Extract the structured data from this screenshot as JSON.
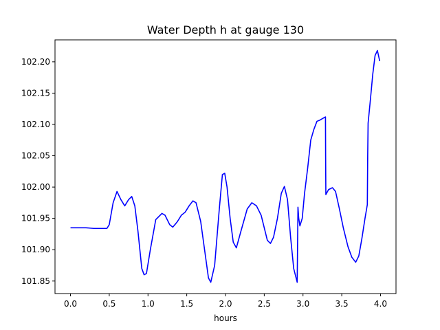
{
  "chart_data": {
    "type": "line",
    "title": "Water Depth h at gauge 130",
    "xlabel": "hours",
    "ylabel": "",
    "xlim": [
      -0.2,
      4.2
    ],
    "ylim": [
      101.83,
      102.235
    ],
    "x_ticks": [
      0.0,
      0.5,
      1.0,
      1.5,
      2.0,
      2.5,
      3.0,
      3.5,
      4.0
    ],
    "x_tick_labels": [
      "0.0",
      "0.5",
      "1.0",
      "1.5",
      "2.0",
      "2.5",
      "3.0",
      "3.5",
      "4.0"
    ],
    "y_ticks": [
      101.85,
      101.9,
      101.95,
      102.0,
      102.05,
      102.1,
      102.15,
      102.2
    ],
    "y_tick_labels": [
      "101.85",
      "101.90",
      "101.95",
      "102.00",
      "102.05",
      "102.10",
      "102.15",
      "102.20"
    ],
    "grid": false,
    "legend": "none",
    "series": [
      {
        "color": "#0000ff",
        "x": [
          0.0,
          0.1,
          0.2,
          0.3,
          0.4,
          0.47,
          0.5,
          0.55,
          0.6,
          0.65,
          0.7,
          0.75,
          0.79,
          0.83,
          0.87,
          0.92,
          0.95,
          0.98,
          1.03,
          1.1,
          1.18,
          1.22,
          1.28,
          1.32,
          1.38,
          1.43,
          1.48,
          1.53,
          1.58,
          1.62,
          1.68,
          1.73,
          1.78,
          1.81,
          1.86,
          1.92,
          1.96,
          1.99,
          2.02,
          2.06,
          2.1,
          2.14,
          2.2,
          2.28,
          2.34,
          2.4,
          2.46,
          2.5,
          2.54,
          2.58,
          2.62,
          2.67,
          2.72,
          2.76,
          2.8,
          2.84,
          2.88,
          2.925,
          2.935,
          2.945,
          2.96,
          2.99,
          3.02,
          3.06,
          3.1,
          3.14,
          3.18,
          3.22,
          3.26,
          3.29,
          3.292,
          3.295,
          3.33,
          3.38,
          3.42,
          3.47,
          3.52,
          3.58,
          3.63,
          3.68,
          3.72,
          3.76,
          3.8,
          3.83,
          3.835,
          3.84,
          3.87,
          3.9,
          3.93,
          3.96,
          3.99
        ],
        "values": [
          101.935,
          101.935,
          101.935,
          101.934,
          101.934,
          101.934,
          101.94,
          101.975,
          101.993,
          101.98,
          101.97,
          101.98,
          101.985,
          101.97,
          101.93,
          101.87,
          101.86,
          101.862,
          101.9,
          101.948,
          101.958,
          101.955,
          101.94,
          101.936,
          101.945,
          101.955,
          101.96,
          101.97,
          101.978,
          101.975,
          101.945,
          101.9,
          101.855,
          101.848,
          101.875,
          101.965,
          102.02,
          102.022,
          102.0,
          101.95,
          101.912,
          101.903,
          101.93,
          101.965,
          101.975,
          101.97,
          101.955,
          101.935,
          101.915,
          101.91,
          101.92,
          101.95,
          101.99,
          102.001,
          101.98,
          101.92,
          101.87,
          101.848,
          101.968,
          101.95,
          101.938,
          101.95,
          101.99,
          102.03,
          102.075,
          102.092,
          102.105,
          102.107,
          102.11,
          102.112,
          102.05,
          101.988,
          101.996,
          101.999,
          101.993,
          101.965,
          101.935,
          101.905,
          101.888,
          101.88,
          101.89,
          101.918,
          101.95,
          101.972,
          102.05,
          102.102,
          102.14,
          102.18,
          102.21,
          102.218,
          102.201
        ]
      }
    ]
  }
}
